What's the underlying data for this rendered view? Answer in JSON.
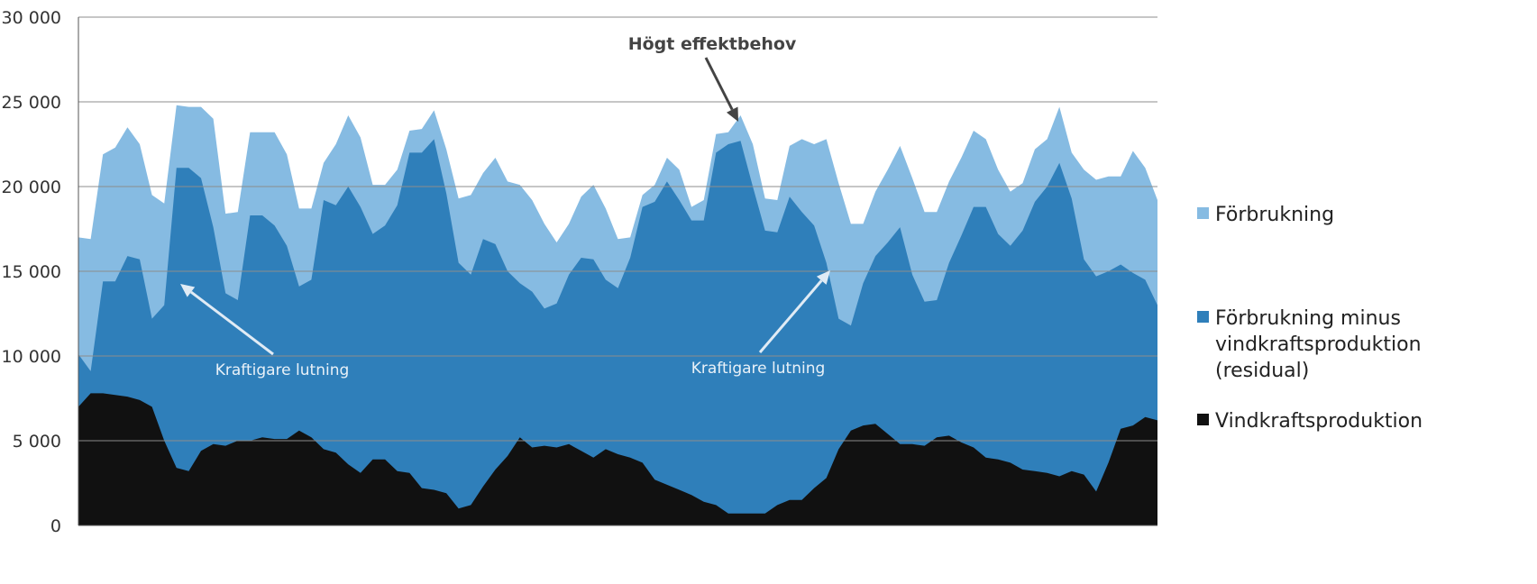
{
  "chart_data": {
    "type": "area",
    "title": "",
    "xlabel": "",
    "ylabel": "",
    "ylim": [
      0,
      30000
    ],
    "yticks": [
      0,
      5000,
      10000,
      15000,
      20000,
      25000,
      30000
    ],
    "ytick_labels": [
      "0",
      "5 000",
      "10 000",
      "15 000",
      "20 000",
      "25 000",
      "30 000"
    ],
    "grid": true,
    "legend_placement": "right",
    "series": [
      {
        "name": "Förbrukning",
        "color": "#86bbe2",
        "values": [
          17000,
          16900,
          21900,
          22300,
          23500,
          22500,
          19500,
          19000,
          24800,
          24700,
          24700,
          24000,
          18400,
          18500,
          23200,
          23200,
          23200,
          21900,
          18700,
          18700,
          21400,
          22500,
          24200,
          22900,
          20100,
          20100,
          21000,
          23300,
          23400,
          24500,
          22200,
          19300,
          19500,
          20800,
          21700,
          20300,
          20100,
          19200,
          17800,
          16700,
          17800,
          19400,
          20100,
          18700,
          16900,
          17000,
          19500,
          20100,
          21700,
          21000,
          18800,
          19200,
          23100,
          23200,
          24200,
          22500,
          19300,
          19200,
          22400,
          22800,
          22500,
          22800,
          20200,
          17800,
          17800,
          19700,
          21000,
          22400,
          20500,
          18500,
          18500,
          20300,
          21700,
          23300,
          22800,
          21000,
          19700,
          20200,
          22200,
          22800,
          24700,
          22000,
          21000,
          20400,
          20600,
          20600,
          22100,
          21100,
          19200
        ]
      },
      {
        "name": "Förbrukning minus vindkraftsproduktion (residual)",
        "color": "#2f7fba",
        "values": [
          10100,
          9100,
          14400,
          14400,
          15900,
          15700,
          12200,
          13000,
          21100,
          21100,
          20500,
          17600,
          13700,
          13300,
          18300,
          18300,
          17700,
          16500,
          14100,
          14500,
          19200,
          18900,
          20000,
          18800,
          17200,
          17700,
          18900,
          22000,
          22000,
          22800,
          19600,
          15500,
          14800,
          16900,
          16600,
          15000,
          14300,
          13800,
          12800,
          13100,
          14800,
          15800,
          15700,
          14500,
          14000,
          15800,
          18800,
          19100,
          20300,
          19200,
          18000,
          18000,
          22000,
          22500,
          22700,
          20000,
          17400,
          17300,
          19400,
          18500,
          17700,
          15500,
          12200,
          11800,
          14300,
          15900,
          16700,
          17600,
          14800,
          13200,
          13300,
          15500,
          17100,
          18800,
          18800,
          17200,
          16500,
          17400,
          19100,
          20000,
          21400,
          19300,
          15700,
          14700,
          15000,
          15400,
          14900,
          14500,
          13000
        ]
      },
      {
        "name": "Vindkraftsproduktion",
        "color": "#111111",
        "values": [
          7000,
          7800,
          7800,
          7700,
          7600,
          7400,
          7000,
          5000,
          3400,
          3200,
          4400,
          4800,
          4700,
          5000,
          5000,
          5200,
          5100,
          5100,
          5600,
          5200,
          4500,
          4300,
          3600,
          3100,
          3900,
          3900,
          3200,
          3100,
          2200,
          2100,
          1900,
          1000,
          1200,
          2300,
          3300,
          4100,
          5200,
          4600,
          4700,
          4600,
          4800,
          4400,
          4000,
          4500,
          4200,
          4000,
          3700,
          2700,
          2400,
          2100,
          1800,
          1400,
          1200,
          700,
          700,
          700,
          700,
          1200,
          1500,
          1500,
          2200,
          2800,
          4500,
          5600,
          5900,
          6000,
          5400,
          4800,
          4800,
          4700,
          5200,
          5300,
          4900,
          4600,
          4000,
          3900,
          3700,
          3300,
          3200,
          3100,
          2900,
          3200,
          3000,
          2000,
          3700,
          5700,
          5900,
          6400,
          6200
        ]
      }
    ],
    "legend": [
      {
        "lines": [
          "Förbrukning"
        ],
        "color": "#86bbe2"
      },
      {
        "lines": [
          "Förbrukning minus",
          "vindkraftsproduktion",
          "(residual)"
        ],
        "color": "#2f7fba"
      },
      {
        "lines": [
          "Vindkraftsproduktion"
        ],
        "color": "#111111"
      }
    ],
    "annotations": [
      {
        "text": "Högt effektbehov",
        "style": "dark",
        "target_index": 55,
        "target_value": 23700
      },
      {
        "text": "Kraftigare lutning",
        "style": "light",
        "target_index": 8,
        "target_value": 14300
      },
      {
        "text": "Kraftigare lutning",
        "style": "light",
        "target_index": 62,
        "target_value": 15300
      }
    ]
  }
}
